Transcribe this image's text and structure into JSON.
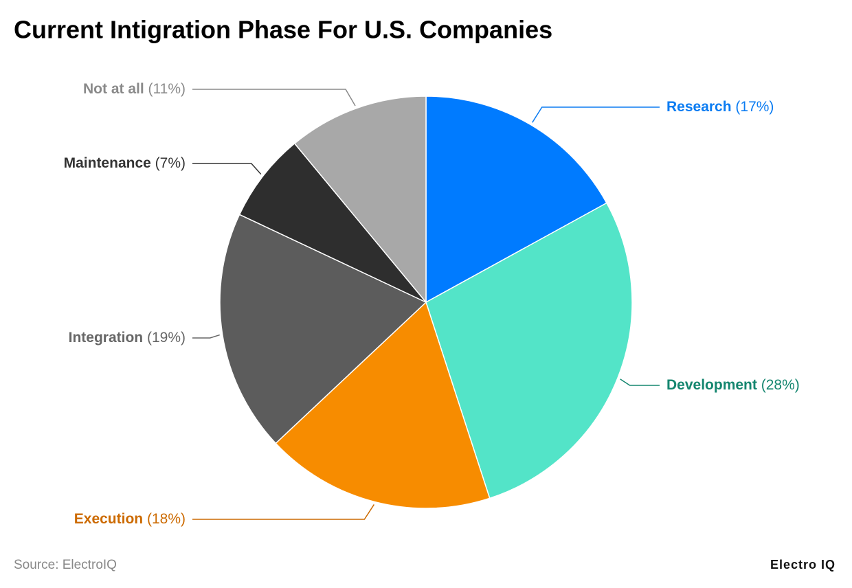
{
  "chart_data": {
    "type": "pie",
    "title": "Current Intigration Phase For U.S. Companies",
    "categories": [
      "Research",
      "Development",
      "Execution",
      "Integration",
      "Maintenance",
      "Not at all"
    ],
    "values": [
      17,
      28,
      18,
      19,
      7,
      11
    ],
    "value_labels": [
      "(17%)",
      "(28%)",
      "(18%)",
      "(19%)",
      "(7%)",
      "(11%)"
    ],
    "colors": [
      "#007bff",
      "#53e4c8",
      "#f78c00",
      "#5c5c5c",
      "#2e2e2e",
      "#a8a8a8"
    ],
    "label_colors": [
      "#0b7cf2",
      "#14866f",
      "#cc6a00",
      "#666666",
      "#333333",
      "#8a8a8a"
    ]
  },
  "footer": {
    "source": "Source: ElectroIQ",
    "brand": "Electro IQ"
  }
}
